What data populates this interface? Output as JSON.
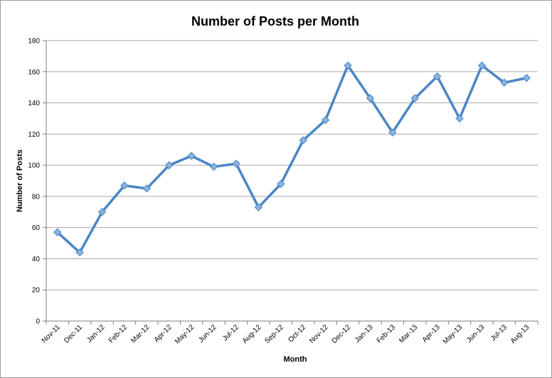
{
  "chart_data": {
    "type": "line",
    "title": "Number of Posts per Month",
    "xlabel": "Month",
    "ylabel": "Number of Posts",
    "ylim": [
      0,
      180
    ],
    "yticks": [
      "0",
      "20",
      "40",
      "60",
      "80",
      "100",
      "120",
      "140",
      "160",
      "180"
    ],
    "grid": true,
    "legend": "none",
    "categories": [
      "Nov-11",
      "Dec-11",
      "Jan-12",
      "Feb-12",
      "Mar-12",
      "Apr-12",
      "May-12",
      "Jun-12",
      "Jul-12",
      "Aug-12",
      "Sep-12",
      "Oct-12",
      "Nov-12",
      "Dec-12",
      "Jan-13",
      "Feb-13",
      "Mar-13",
      "Apr-13",
      "May-13",
      "Jun-13",
      "Jul-13",
      "Aug-13"
    ],
    "series": [
      {
        "values": [
          57,
          44,
          70,
          87,
          85,
          100,
          106,
          99,
          101,
          73,
          88,
          116,
          129,
          164,
          143,
          121,
          143,
          157,
          130,
          164,
          153,
          156
        ],
        "color": "#4a86c5",
        "marker_color": "#8ab4df"
      }
    ]
  }
}
